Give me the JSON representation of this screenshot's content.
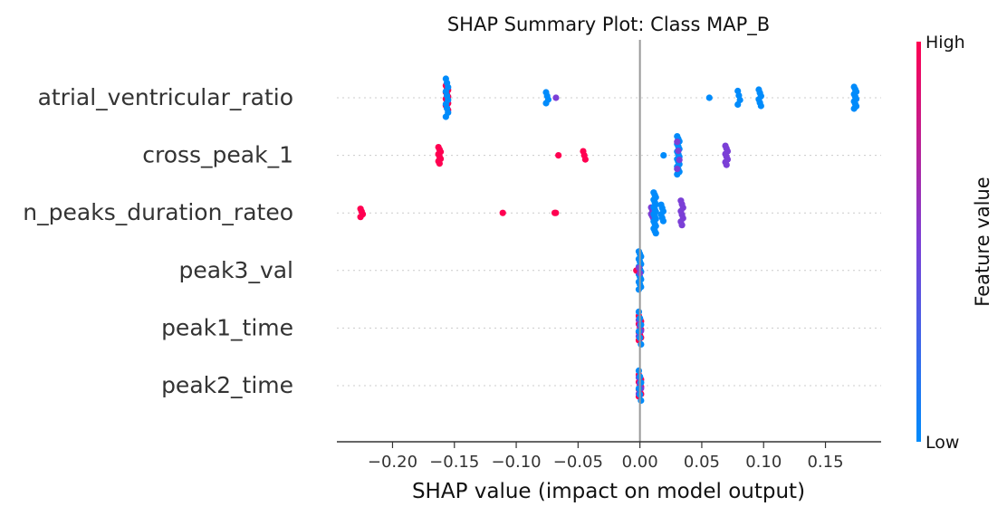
{
  "chart_data": {
    "type": "scatter",
    "title": "SHAP Summary Plot: Class MAP_B",
    "xlabel": "SHAP value (impact on model output)",
    "xlim": [
      -0.245,
      0.195
    ],
    "xticks": [
      -0.2,
      -0.15,
      -0.1,
      -0.05,
      0.0,
      0.05,
      0.1,
      0.15
    ],
    "xtick_labels": [
      "−0.20",
      "−0.15",
      "−0.10",
      "−0.05",
      "0.00",
      "0.05",
      "0.10",
      "0.15"
    ],
    "grid": false,
    "colors": {
      "high": "#ff0051",
      "low": "#008bfb",
      "mid": "#7b3fd6",
      "zero_line": "#999999",
      "axis": "#333333"
    },
    "colorbar": {
      "label": "Feature value",
      "high_label": "High",
      "low_label": "Low",
      "placement": "right"
    },
    "features": [
      {
        "name": "atrial_ventricular_ratio",
        "groups": [
          {
            "x": -0.156,
            "spread": 0.45,
            "color": "high",
            "n": 12
          },
          {
            "x": -0.156,
            "spread": 0.7,
            "color": "low",
            "n": 10
          },
          {
            "x": -0.075,
            "spread": 0.2,
            "color": "low",
            "n": 4
          },
          {
            "x": -0.067,
            "spread": 0.0,
            "color": "mid",
            "n": 1
          },
          {
            "x": 0.057,
            "spread": 0.0,
            "color": "low",
            "n": 1
          },
          {
            "x": 0.08,
            "spread": 0.25,
            "color": "low",
            "n": 4
          },
          {
            "x": 0.097,
            "spread": 0.3,
            "color": "low",
            "n": 6
          },
          {
            "x": 0.174,
            "spread": 0.4,
            "color": "low",
            "n": 10
          }
        ]
      },
      {
        "name": "cross_peak_1",
        "groups": [
          {
            "x": -0.162,
            "spread": 0.3,
            "color": "high",
            "n": 8
          },
          {
            "x": -0.065,
            "spread": 0.0,
            "color": "high",
            "n": 1
          },
          {
            "x": -0.045,
            "spread": 0.15,
            "color": "high",
            "n": 3
          },
          {
            "x": 0.02,
            "spread": 0.0,
            "color": "low",
            "n": 1
          },
          {
            "x": 0.031,
            "spread": 0.7,
            "color": "low",
            "n": 16
          },
          {
            "x": 0.031,
            "spread": 0.5,
            "color": "mid",
            "n": 4
          },
          {
            "x": 0.07,
            "spread": 0.35,
            "color": "mid",
            "n": 8
          }
        ]
      },
      {
        "name": "n_peaks_duration_rateo",
        "groups": [
          {
            "x": -0.225,
            "spread": 0.15,
            "color": "high",
            "n": 4
          },
          {
            "x": -0.11,
            "spread": 0.0,
            "color": "high",
            "n": 1
          },
          {
            "x": -0.068,
            "spread": 0.0,
            "color": "high",
            "n": 2
          },
          {
            "x": 0.01,
            "spread": 0.2,
            "color": "mid",
            "n": 6
          },
          {
            "x": 0.012,
            "spread": 0.75,
            "color": "low",
            "n": 18
          },
          {
            "x": 0.018,
            "spread": 0.3,
            "color": "low",
            "n": 6
          },
          {
            "x": 0.034,
            "spread": 0.45,
            "color": "mid",
            "n": 8
          }
        ]
      },
      {
        "name": "peak3_val",
        "groups": [
          {
            "x": 0.0,
            "spread": 0.7,
            "color": "low",
            "n": 16
          },
          {
            "x": -0.002,
            "spread": 0.0,
            "color": "high",
            "n": 1
          },
          {
            "x": 0.0,
            "spread": 0.1,
            "color": "mid",
            "n": 2
          }
        ]
      },
      {
        "name": "peak1_time",
        "groups": [
          {
            "x": 0.0,
            "spread": 0.45,
            "color": "high",
            "n": 10
          },
          {
            "x": 0.0,
            "spread": 0.3,
            "color": "mid",
            "n": 4
          },
          {
            "x": 0.0,
            "spread": 0.6,
            "color": "low",
            "n": 6
          }
        ]
      },
      {
        "name": "peak2_time",
        "groups": [
          {
            "x": 0.0,
            "spread": 0.4,
            "color": "high",
            "n": 10
          },
          {
            "x": 0.0,
            "spread": 0.3,
            "color": "mid",
            "n": 4
          },
          {
            "x": 0.0,
            "spread": 0.55,
            "color": "low",
            "n": 6
          }
        ]
      }
    ]
  }
}
